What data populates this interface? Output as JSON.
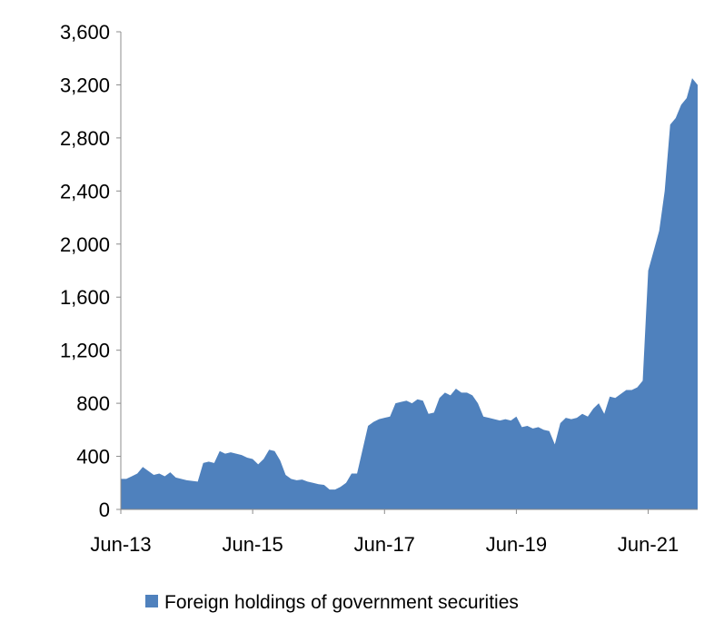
{
  "chart_data": {
    "type": "area",
    "title": "",
    "xlabel": "",
    "ylabel": "",
    "ylim": [
      0,
      3600
    ],
    "yticks": [
      0,
      400,
      800,
      1200,
      1600,
      2000,
      2400,
      2800,
      3200,
      3600
    ],
    "ytick_labels": [
      "0",
      "400",
      "800",
      "1,200",
      "1,600",
      "2,000",
      "2,400",
      "2,800",
      "3,200",
      "3,600"
    ],
    "xlim": [
      "2013-06",
      "2022-03"
    ],
    "xticks": [
      "2013-06",
      "2015-06",
      "2017-06",
      "2019-06",
      "2021-06"
    ],
    "xtick_labels": [
      "Jun-13",
      "Jun-15",
      "Jun-17",
      "Jun-19",
      "Jun-21"
    ],
    "grid": false,
    "legend_position": "bottom",
    "series": [
      {
        "name": "Foreign holdings of government securities",
        "color": "#4f81bd",
        "points": [
          [
            "2013-06",
            230
          ],
          [
            "2013-07",
            230
          ],
          [
            "2013-08",
            250
          ],
          [
            "2013-09",
            270
          ],
          [
            "2013-10",
            320
          ],
          [
            "2013-11",
            290
          ],
          [
            "2013-12",
            260
          ],
          [
            "2014-01",
            270
          ],
          [
            "2014-02",
            250
          ],
          [
            "2014-03",
            280
          ],
          [
            "2014-04",
            240
          ],
          [
            "2014-05",
            230
          ],
          [
            "2014-06",
            220
          ],
          [
            "2014-07",
            215
          ],
          [
            "2014-08",
            210
          ],
          [
            "2014-09",
            350
          ],
          [
            "2014-10",
            360
          ],
          [
            "2014-11",
            350
          ],
          [
            "2014-12",
            440
          ],
          [
            "2015-01",
            420
          ],
          [
            "2015-02",
            430
          ],
          [
            "2015-03",
            420
          ],
          [
            "2015-04",
            410
          ],
          [
            "2015-05",
            390
          ],
          [
            "2015-06",
            380
          ],
          [
            "2015-07",
            340
          ],
          [
            "2015-08",
            380
          ],
          [
            "2015-09",
            450
          ],
          [
            "2015-10",
            440
          ],
          [
            "2015-11",
            370
          ],
          [
            "2015-12",
            260
          ],
          [
            "2016-01",
            230
          ],
          [
            "2016-02",
            220
          ],
          [
            "2016-03",
            225
          ],
          [
            "2016-04",
            210
          ],
          [
            "2016-05",
            200
          ],
          [
            "2016-06",
            190
          ],
          [
            "2016-07",
            185
          ],
          [
            "2016-08",
            150
          ],
          [
            "2016-09",
            150
          ],
          [
            "2016-10",
            170
          ],
          [
            "2016-11",
            200
          ],
          [
            "2016-12",
            270
          ],
          [
            "2017-01",
            270
          ],
          [
            "2017-02",
            450
          ],
          [
            "2017-03",
            630
          ],
          [
            "2017-04",
            660
          ],
          [
            "2017-05",
            680
          ],
          [
            "2017-06",
            690
          ],
          [
            "2017-07",
            700
          ],
          [
            "2017-08",
            800
          ],
          [
            "2017-09",
            810
          ],
          [
            "2017-10",
            820
          ],
          [
            "2017-11",
            800
          ],
          [
            "2017-12",
            830
          ],
          [
            "2018-01",
            820
          ],
          [
            "2018-02",
            720
          ],
          [
            "2018-03",
            730
          ],
          [
            "2018-04",
            840
          ],
          [
            "2018-05",
            880
          ],
          [
            "2018-06",
            860
          ],
          [
            "2018-07",
            910
          ],
          [
            "2018-08",
            880
          ],
          [
            "2018-09",
            880
          ],
          [
            "2018-10",
            860
          ],
          [
            "2018-11",
            800
          ],
          [
            "2018-12",
            700
          ],
          [
            "2019-01",
            690
          ],
          [
            "2019-02",
            680
          ],
          [
            "2019-03",
            670
          ],
          [
            "2019-04",
            680
          ],
          [
            "2019-05",
            670
          ],
          [
            "2019-06",
            700
          ],
          [
            "2019-07",
            620
          ],
          [
            "2019-08",
            630
          ],
          [
            "2019-09",
            610
          ],
          [
            "2019-10",
            620
          ],
          [
            "2019-11",
            600
          ],
          [
            "2019-12",
            590
          ],
          [
            "2020-01",
            490
          ],
          [
            "2020-02",
            650
          ],
          [
            "2020-03",
            690
          ],
          [
            "2020-04",
            680
          ],
          [
            "2020-05",
            690
          ],
          [
            "2020-06",
            720
          ],
          [
            "2020-07",
            700
          ],
          [
            "2020-08",
            760
          ],
          [
            "2020-09",
            800
          ],
          [
            "2020-10",
            720
          ],
          [
            "2020-11",
            850
          ],
          [
            "2020-12",
            840
          ],
          [
            "2021-01",
            870
          ],
          [
            "2021-02",
            900
          ],
          [
            "2021-03",
            900
          ],
          [
            "2021-04",
            920
          ],
          [
            "2021-05",
            970
          ],
          [
            "2021-06",
            1800
          ],
          [
            "2021-07",
            1950
          ],
          [
            "2021-08",
            2100
          ],
          [
            "2021-09",
            2400
          ],
          [
            "2021-10",
            2900
          ],
          [
            "2021-11",
            2950
          ],
          [
            "2021-12",
            3050
          ],
          [
            "2022-01",
            3100
          ],
          [
            "2022-02",
            3250
          ],
          [
            "2022-03",
            3200
          ]
        ]
      }
    ]
  }
}
